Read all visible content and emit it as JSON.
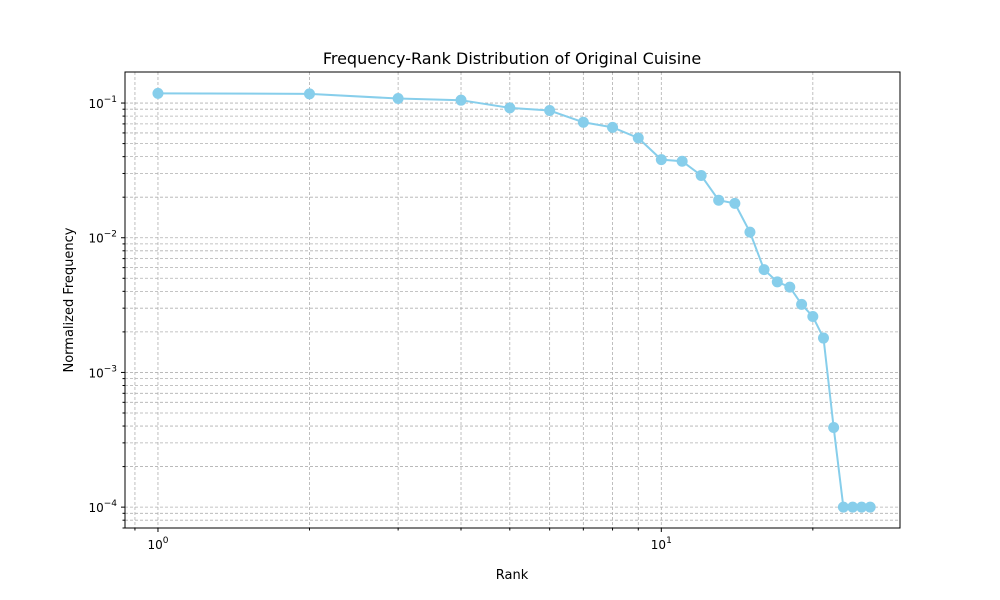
{
  "chart_data": {
    "type": "line",
    "title": "Frequency-Rank Distribution of Original Cuisine",
    "xlabel": "Rank",
    "ylabel": "Normalized Frequency",
    "xscale": "log",
    "yscale": "log",
    "xlim": [
      0.86,
      29.8
    ],
    "ylim": [
      7e-05,
      0.17
    ],
    "grid": true,
    "grid_which": "both",
    "color": "#87CEEB",
    "marker": "circle",
    "x_tick_labels": [
      {
        "value": 1,
        "base": "10",
        "exp": "0"
      },
      {
        "value": 10,
        "base": "10",
        "exp": "1"
      }
    ],
    "y_tick_labels": [
      {
        "value": 0.0001,
        "base": "10",
        "exp": "−4"
      },
      {
        "value": 0.001,
        "base": "10",
        "exp": "−3"
      },
      {
        "value": 0.01,
        "base": "10",
        "exp": "−2"
      },
      {
        "value": 0.1,
        "base": "10",
        "exp": "−1"
      }
    ],
    "x": [
      1,
      2,
      3,
      4,
      5,
      6,
      7,
      8,
      9,
      10,
      11,
      12,
      13,
      14,
      15,
      16,
      17,
      18,
      19,
      20,
      21,
      22,
      23,
      24,
      25,
      26
    ],
    "y": [
      0.118,
      0.117,
      0.108,
      0.105,
      0.092,
      0.088,
      0.072,
      0.066,
      0.055,
      0.038,
      0.037,
      0.029,
      0.019,
      0.018,
      0.011,
      0.0058,
      0.0047,
      0.0043,
      0.0032,
      0.0026,
      0.0018,
      0.00039,
      0.0001,
      0.0001,
      0.0001,
      0.0001
    ]
  }
}
